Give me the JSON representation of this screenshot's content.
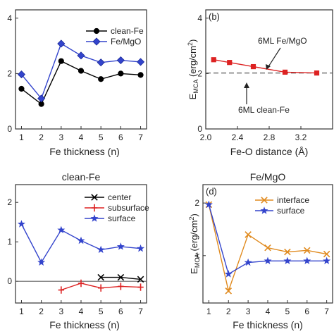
{
  "chart_data": [
    {
      "id": "a",
      "type": "line",
      "panel_label": "",
      "title": "",
      "xlabel": "Fe thickness (n)",
      "ylabel": "",
      "xlim": [
        0.7,
        7.3
      ],
      "ylim": [
        0,
        4.3
      ],
      "xticks": [
        "1",
        "2",
        "3",
        "4",
        "5",
        "6",
        "7"
      ],
      "xtick_values": [
        1,
        2,
        3,
        4,
        5,
        6,
        7
      ],
      "yticks": [
        "0",
        "2",
        "4"
      ],
      "ytick_values": [
        0,
        2,
        4
      ],
      "legend": "top-right",
      "series": [
        {
          "name": "clean-Fe",
          "color": "#000000",
          "marker": "circle",
          "x": [
            1,
            2,
            3,
            4,
            5,
            6,
            7
          ],
          "y": [
            1.45,
            0.9,
            2.45,
            2.1,
            1.8,
            2.0,
            1.95
          ]
        },
        {
          "name": "Fe/MgO",
          "color": "#3344cc",
          "marker": "diamond",
          "x": [
            1,
            2,
            3,
            4,
            5,
            6,
            7
          ],
          "y": [
            1.97,
            1.1,
            3.08,
            2.65,
            2.4,
            2.48,
            2.42
          ]
        }
      ]
    },
    {
      "id": "b",
      "type": "line",
      "panel_label": "(b)",
      "title": "",
      "xlabel": "Fe-O distance (Å)",
      "ylabel": "E_MCA (erg/cm²)",
      "ylabel_main": "E",
      "ylabel_sub": "MCA",
      "ylabel_rest": " (erg/cm",
      "ylabel_sup": "2",
      "ylabel_end": ")",
      "xlim": [
        2.0,
        3.6
      ],
      "ylim": [
        0,
        4.3
      ],
      "xticks": [
        "2.0",
        "2.4",
        "2.8",
        "3.2"
      ],
      "xtick_values": [
        2.0,
        2.4,
        2.8,
        3.2
      ],
      "yticks": [
        "0",
        "2",
        "4"
      ],
      "ytick_values": [
        0,
        2,
        4
      ],
      "reference_line": {
        "y": 2.02,
        "style": "dashed",
        "color": "#555555"
      },
      "annotations": [
        {
          "text": "6ML Fe/MgO"
        },
        {
          "text": "6ML clean-Fe"
        }
      ],
      "series": [
        {
          "name": "6ML Fe/MgO",
          "color": "#dd2222",
          "marker": "square",
          "x": [
            2.1,
            2.3,
            2.6,
            3.0,
            3.4
          ],
          "y": [
            2.5,
            2.4,
            2.25,
            2.05,
            2.02
          ]
        }
      ]
    },
    {
      "id": "c",
      "type": "line",
      "panel_label": "",
      "title": "clean-Fe",
      "xlabel": "Fe thickness (n)",
      "ylabel": "",
      "xlim": [
        0.7,
        7.3
      ],
      "ylim": [
        -0.55,
        2.45
      ],
      "xticks": [
        "1",
        "2",
        "3",
        "4",
        "5",
        "6",
        "7"
      ],
      "xtick_values": [
        1,
        2,
        3,
        4,
        5,
        6,
        7
      ],
      "yticks": [
        "0",
        "1",
        "2"
      ],
      "ytick_values": [
        0,
        1,
        2
      ],
      "reference_line": {
        "y": 0,
        "style": "solid",
        "color": "#666666"
      },
      "legend": "top-right",
      "series": [
        {
          "name": "center",
          "color": "#000000",
          "marker": "x",
          "x": [
            5,
            6,
            7
          ],
          "y": [
            0.1,
            0.1,
            0.05
          ]
        },
        {
          "name": "subsurface",
          "color": "#dd2222",
          "marker": "plus",
          "x": [
            3,
            4,
            5,
            6,
            7
          ],
          "y": [
            -0.22,
            -0.05,
            -0.17,
            -0.13,
            -0.15
          ]
        },
        {
          "name": "surface",
          "color": "#3344cc",
          "marker": "star",
          "x": [
            1,
            2,
            3,
            4,
            5,
            6,
            7
          ],
          "y": [
            1.45,
            0.48,
            1.3,
            1.03,
            0.8,
            0.88,
            0.83
          ]
        }
      ]
    },
    {
      "id": "d",
      "type": "line",
      "panel_label": "(d)",
      "title": "Fe/MgO",
      "xlabel": "Fe thickness (n)",
      "ylabel": "E_MCA (erg/cm²)",
      "ylabel_main": "E",
      "ylabel_sub": "MCA",
      "ylabel_rest": " (erg/cm",
      "ylabel_sup": "2",
      "ylabel_end": ")",
      "xlim": [
        0.7,
        7.3
      ],
      "ylim": [
        0.1,
        2.35
      ],
      "xticks": [
        "1",
        "2",
        "3",
        "4",
        "5",
        "6",
        "7"
      ],
      "xtick_values": [
        1,
        2,
        3,
        4,
        5,
        6,
        7
      ],
      "yticks": [
        "1",
        "2"
      ],
      "ytick_values": [
        1,
        2
      ],
      "legend": "top-right",
      "series": [
        {
          "name": "interface",
          "color": "#e08a1e",
          "marker": "x",
          "x": [
            1,
            2,
            3,
            4,
            5,
            6,
            7
          ],
          "y": [
            1.97,
            0.33,
            1.4,
            1.15,
            1.07,
            1.1,
            1.03
          ]
        },
        {
          "name": "surface",
          "color": "#3344cc",
          "marker": "star",
          "x": [
            1,
            2,
            3,
            4,
            5,
            6,
            7
          ],
          "y": [
            1.97,
            0.65,
            0.87,
            0.9,
            0.9,
            0.9,
            0.9
          ]
        }
      ]
    }
  ]
}
